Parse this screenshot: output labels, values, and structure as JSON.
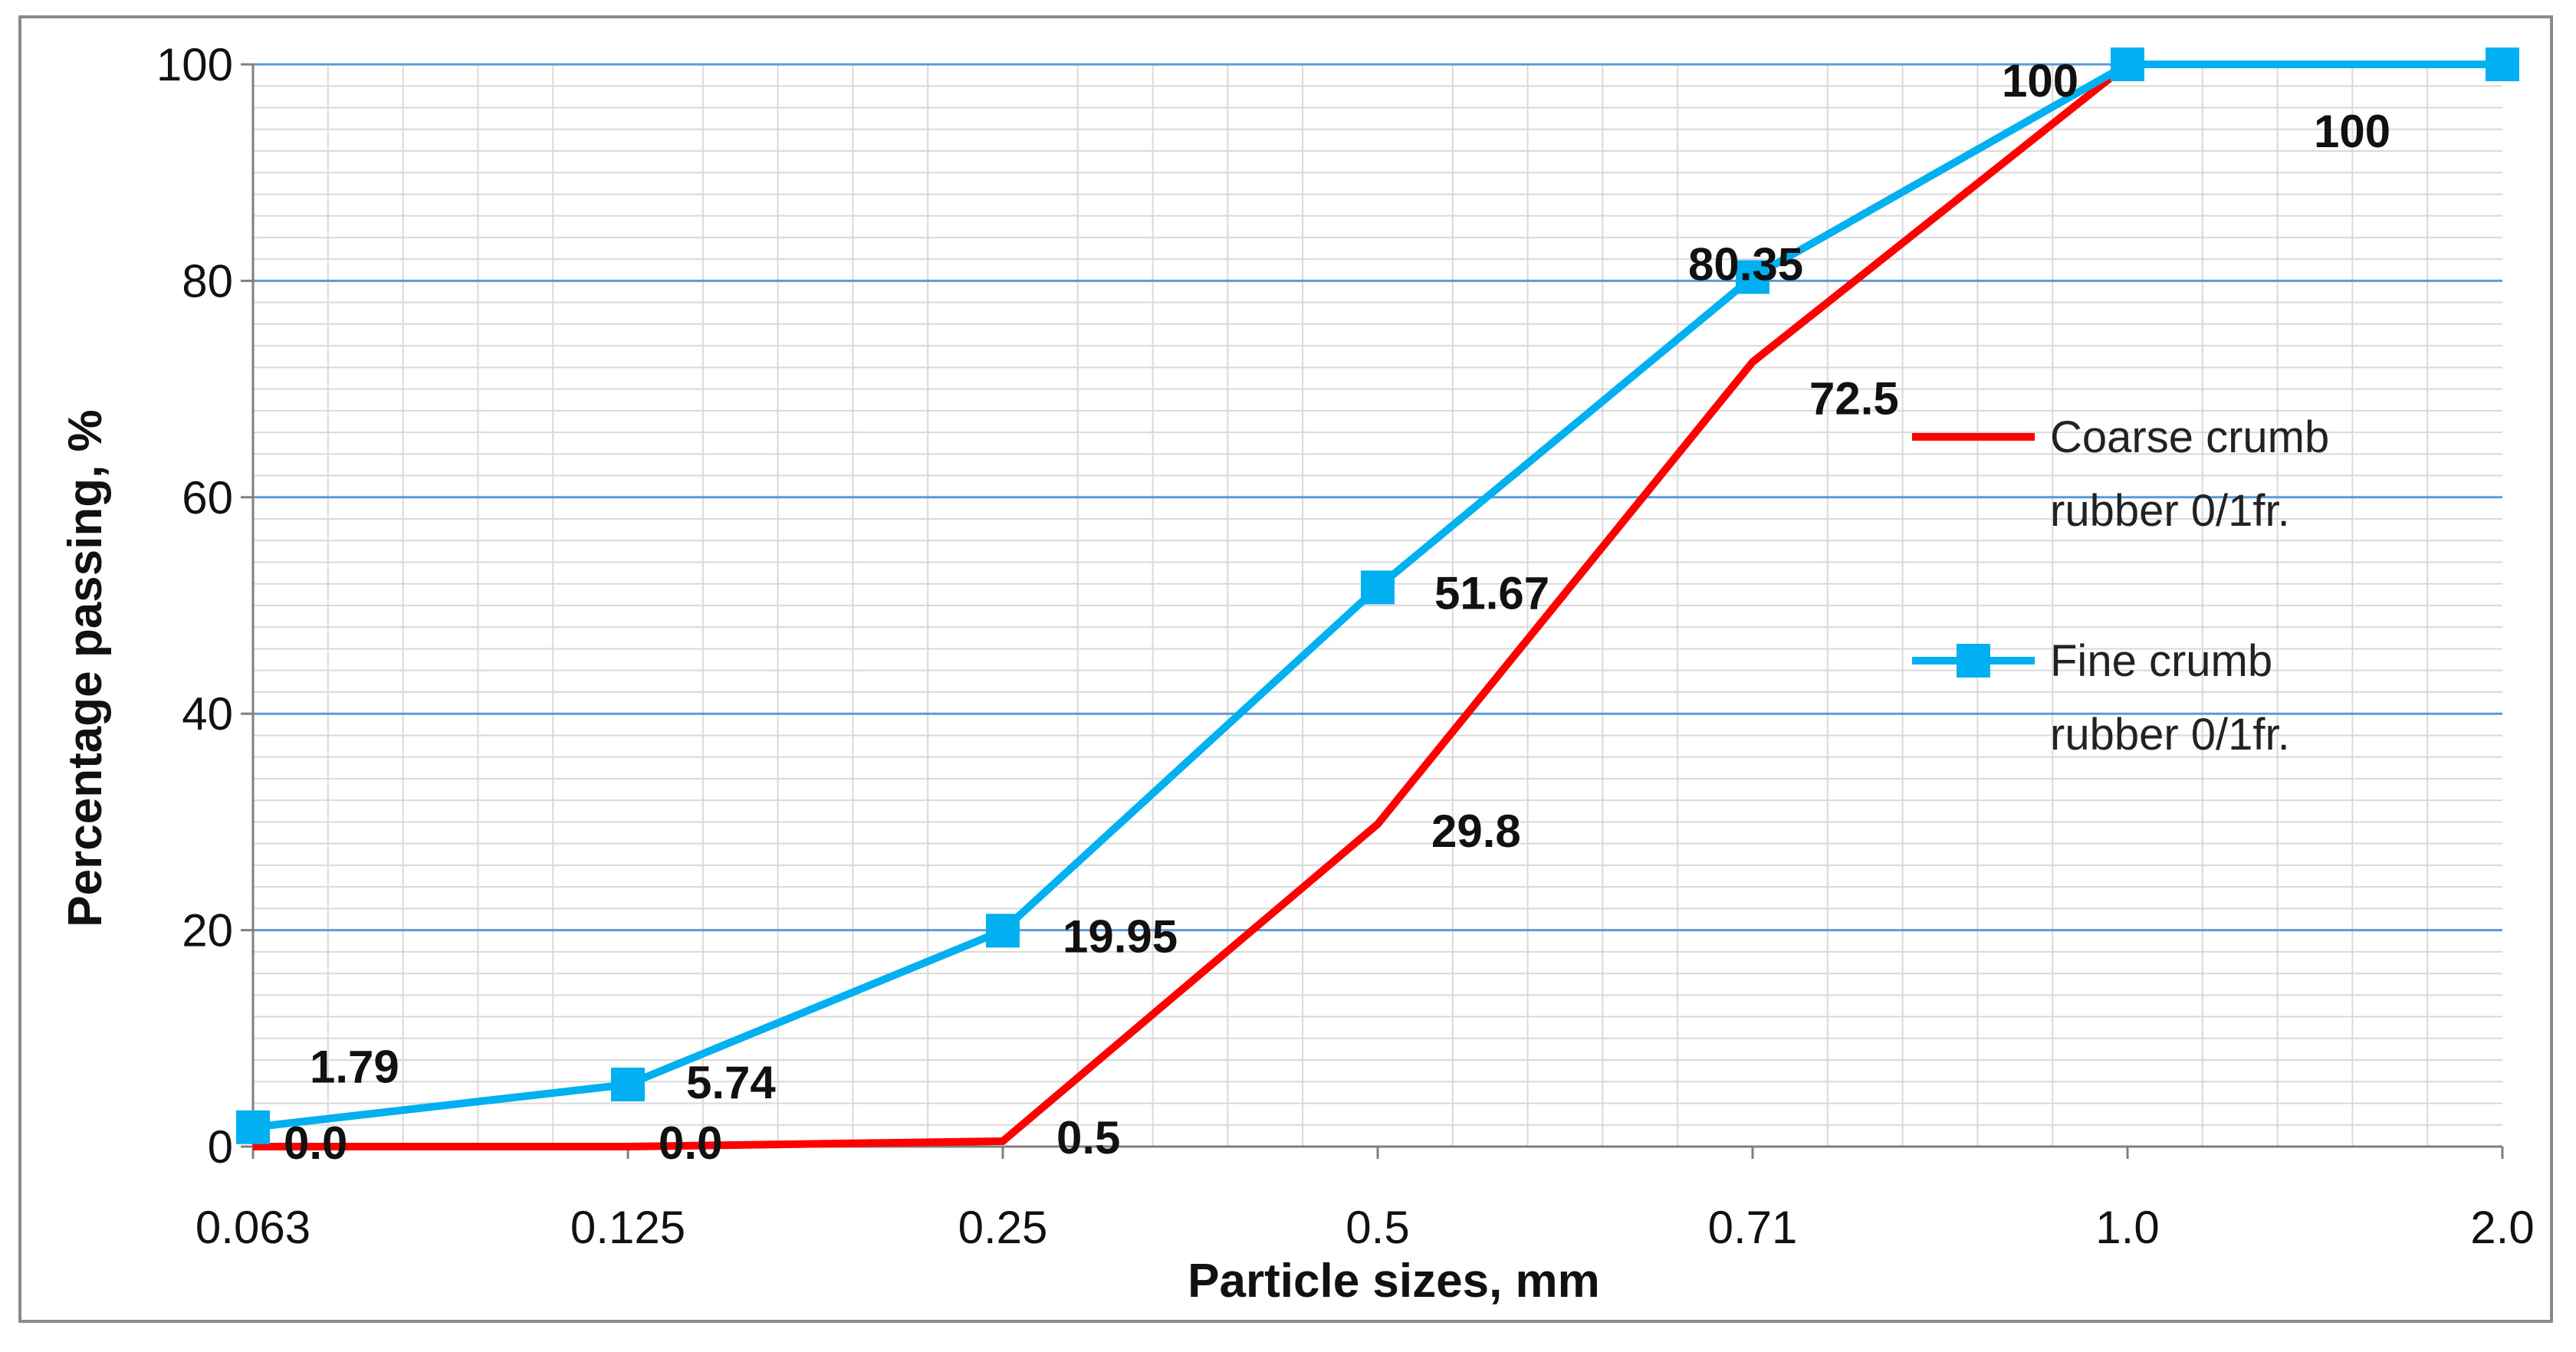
{
  "chart_data": {
    "type": "line",
    "title": "",
    "xlabel": "Particle sizes, mm",
    "ylabel": "Percentage passing, %",
    "categories": [
      "0.063",
      "0.125",
      "0.25",
      "0.5",
      "0.71",
      "1.0",
      "2.0"
    ],
    "ylim": [
      0,
      100
    ],
    "yticks": [
      0,
      20,
      40,
      60,
      80,
      100
    ],
    "grid": "on",
    "legend_position": "right",
    "series": [
      {
        "name": "Coarse crumb rubber 0/1fr.",
        "legend_lines": [
          "Coarse crumb",
          "rubber 0/1fr."
        ],
        "color": "#ff0000",
        "marker": "none",
        "values": [
          0.0,
          0.0,
          0.5,
          29.8,
          72.5,
          100,
          null
        ],
        "labels": [
          "0.0",
          "0.0",
          "0.5",
          "29.8",
          "72.5",
          "",
          ""
        ]
      },
      {
        "name": "Fine crumb rubber 0/1fr.",
        "legend_lines": [
          "Fine crumb",
          "rubber 0/1fr."
        ],
        "color": "#00b0f0",
        "marker": "square",
        "values": [
          1.79,
          5.74,
          19.95,
          51.67,
          80.35,
          100,
          100
        ],
        "labels": [
          "1.79",
          "5.74",
          "19.95",
          "51.67",
          "80.35",
          "100",
          "100"
        ]
      }
    ]
  }
}
